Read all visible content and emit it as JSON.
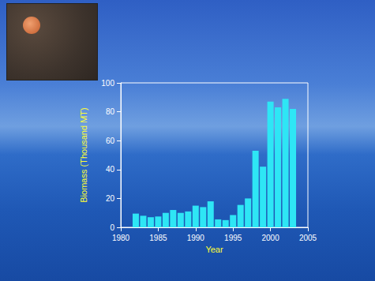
{
  "chart_data": {
    "type": "bar",
    "x_label": "Year",
    "y_label": "Biomass (Thousand MT)",
    "x": [
      1982,
      1983,
      1984,
      1985,
      1986,
      1987,
      1988,
      1989,
      1990,
      1991,
      1992,
      1993,
      1994,
      1995,
      1996,
      1997,
      1998,
      1999,
      2000,
      2001,
      2002,
      2003
    ],
    "values": [
      9.5,
      8,
      7,
      7.5,
      10,
      12,
      10,
      11,
      15,
      14,
      18,
      5.5,
      5,
      8.5,
      15.5,
      20,
      53,
      42,
      87,
      83,
      89,
      82
    ],
    "color": "#2ee6f5",
    "xlim": [
      1980,
      2005
    ],
    "xticks": [
      1980,
      1985,
      1990,
      1995,
      2000,
      2005
    ],
    "ylim": [
      0,
      100
    ],
    "yticks": [
      0,
      20,
      40,
      60,
      80,
      100
    ],
    "grid": false
  }
}
